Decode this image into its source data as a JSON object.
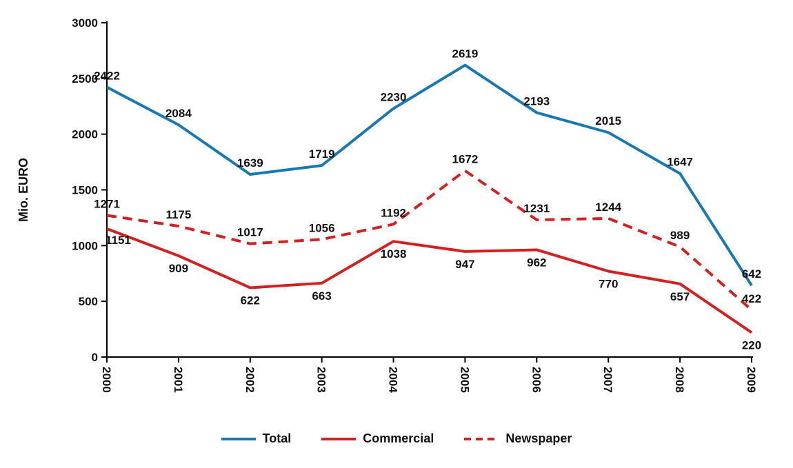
{
  "chart_data": {
    "type": "line",
    "title": "",
    "xlabel": "",
    "ylabel": "Mio. EURO",
    "ylim": [
      0,
      3000
    ],
    "yticks": [
      0,
      500,
      1000,
      1500,
      2000,
      2500,
      3000
    ],
    "grid": false,
    "legend_position": "bottom",
    "categories": [
      "2000",
      "2001",
      "2002",
      "2003",
      "2004",
      "2005",
      "2006",
      "2007",
      "2008",
      "2009"
    ],
    "series": [
      {
        "name": "Total",
        "color": "#1878B4",
        "style": "solid",
        "label_position": "above",
        "values": [
          2422,
          2084,
          1639,
          1719,
          2230,
          2619,
          2193,
          2015,
          1647,
          642
        ]
      },
      {
        "name": "Commercial",
        "color": "#D42020",
        "style": "solid",
        "label_position": "below",
        "values": [
          1151,
          909,
          622,
          663,
          1038,
          947,
          962,
          770,
          657,
          220
        ]
      },
      {
        "name": "Newspaper",
        "color": "#D42020",
        "style": "dashed",
        "label_position": "above",
        "values": [
          1271,
          1175,
          1017,
          1056,
          1192,
          1672,
          1231,
          1244,
          989,
          422
        ]
      }
    ]
  },
  "colors": {
    "axis": "#000000",
    "label": "#111111"
  }
}
